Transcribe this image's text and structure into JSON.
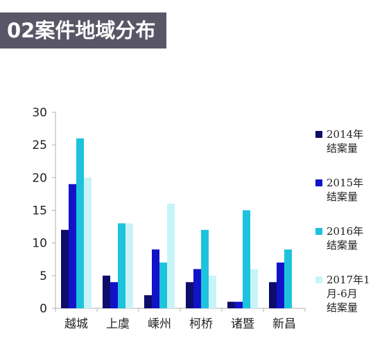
{
  "header": {
    "title": "02案件地域分布"
  },
  "colors": {
    "header_bg": "#595667",
    "series": [
      "#0d0d6b",
      "#1212c9",
      "#1dc3dd",
      "#c8f4f8"
    ],
    "axis": "#b0b0b0"
  },
  "chart_data": {
    "type": "bar",
    "title": "",
    "xlabel": "",
    "ylabel": "",
    "categories": [
      "越城",
      "上虞",
      "嵊州",
      "柯桥",
      "诸暨",
      "新昌"
    ],
    "ylim": [
      0,
      30
    ],
    "yticks": [
      0,
      5,
      10,
      15,
      20,
      25,
      30
    ],
    "grid": false,
    "legend_position": "right",
    "series": [
      {
        "name": [
          "2014年",
          "结案量"
        ],
        "values": [
          12,
          5,
          2,
          4,
          1,
          4
        ]
      },
      {
        "name": [
          "2015年",
          "结案量"
        ],
        "values": [
          19,
          4,
          9,
          6,
          1,
          7
        ]
      },
      {
        "name": [
          "2016年",
          "结案量"
        ],
        "values": [
          26,
          13,
          7,
          12,
          15,
          9
        ]
      },
      {
        "name": [
          "2017年1",
          "月-6月",
          "结案量"
        ],
        "values": [
          20,
          13,
          16,
          5,
          6,
          0
        ]
      }
    ]
  }
}
